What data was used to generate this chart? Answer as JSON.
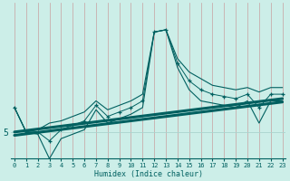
{
  "xlabel": "Humidex (Indice chaleur)",
  "bg_color": "#cceee8",
  "line_color": "#006060",
  "grid_color": "#aad4ce",
  "ytick_label": "5",
  "ytick_val": 5,
  "xlim": [
    -0.3,
    23.3
  ],
  "ylim": [
    3.8,
    10.8
  ],
  "x": [
    0,
    1,
    2,
    3,
    4,
    5,
    6,
    7,
    8,
    9,
    10,
    11,
    12,
    13,
    14,
    15,
    16,
    17,
    18,
    19,
    20,
    21,
    22,
    23
  ],
  "y_data": [
    6.1,
    5.0,
    5.0,
    4.6,
    5.1,
    5.3,
    5.5,
    6.2,
    5.7,
    5.9,
    6.1,
    6.4,
    9.5,
    9.6,
    8.1,
    7.3,
    6.9,
    6.7,
    6.6,
    6.5,
    6.7,
    6.1,
    6.7,
    6.7
  ],
  "y_upper": [
    6.1,
    5.0,
    5.1,
    5.4,
    5.5,
    5.7,
    5.9,
    6.4,
    6.0,
    6.2,
    6.4,
    6.7,
    9.5,
    9.6,
    8.3,
    7.7,
    7.4,
    7.1,
    7.0,
    6.9,
    7.0,
    6.8,
    7.0,
    7.0
  ],
  "y_lower": [
    6.1,
    5.0,
    4.9,
    3.8,
    4.7,
    4.9,
    5.1,
    6.0,
    5.4,
    5.6,
    5.8,
    6.1,
    9.5,
    9.6,
    7.9,
    6.9,
    6.4,
    6.3,
    6.2,
    6.1,
    6.4,
    5.4,
    6.4,
    6.4
  ],
  "y_trend1_start": 5.0,
  "y_trend1_end": 6.5,
  "y_trend2_start": 4.85,
  "y_trend2_end": 6.35
}
